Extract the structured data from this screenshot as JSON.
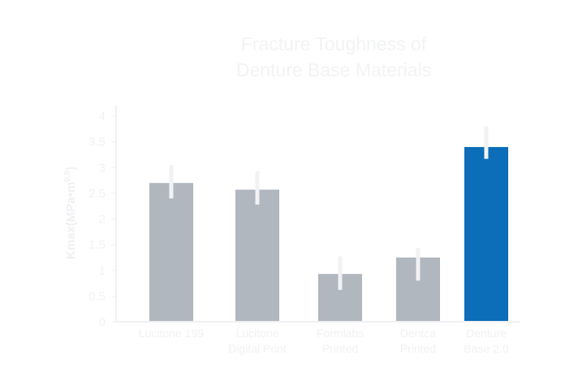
{
  "chart_data": {
    "type": "bar",
    "title_lines": [
      "Fracture Toughness of",
      "Denture Base Materials"
    ],
    "ylabel": {
      "main": "Kmax(MPa•m",
      "superscript": "0.5",
      "close": ")"
    },
    "ylim": [
      0,
      4
    ],
    "yticks": [
      "0",
      "0.5",
      "1",
      "1.5",
      "2",
      "2.5",
      "3",
      "3.5",
      "4"
    ],
    "categories": [
      [
        "Lucitone 199"
      ],
      [
        "Lucitone",
        "Digital Print"
      ],
      [
        "Formlabs",
        "Printed"
      ],
      [
        "Dentca",
        "Printed"
      ],
      [
        "Denture",
        "Base 2.0"
      ]
    ],
    "values": [
      2.7,
      2.57,
      0.93,
      1.25,
      3.4
    ],
    "error_low": [
      2.4,
      2.28,
      0.62,
      0.8,
      3.17
    ],
    "error_high": [
      3.05,
      2.93,
      1.27,
      1.44,
      3.8
    ],
    "colors": [
      "#b1b7bf",
      "#b1b7bf",
      "#b1b7bf",
      "#b1b7bf",
      "#0c6eb8"
    ],
    "error_color": "#f1f2f4"
  }
}
